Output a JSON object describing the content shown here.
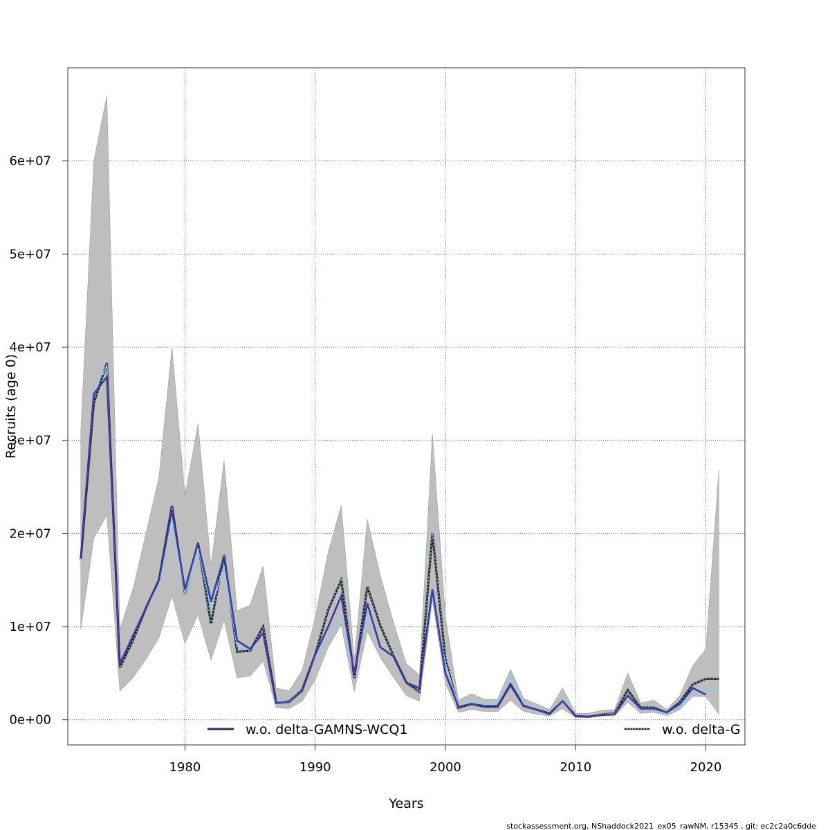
{
  "chart_data": {
    "type": "line",
    "title": "",
    "xlabel": "Years",
    "ylabel": "Recruits (age 0)",
    "xlim": [
      1971,
      2023
    ],
    "ylim": [
      -2700000,
      70000000
    ],
    "x_ticks": [
      1980,
      1990,
      2000,
      2010,
      2020
    ],
    "x_tick_labels": [
      "1980",
      "1990",
      "2000",
      "2010",
      "2020"
    ],
    "y_ticks": [
      0,
      10000000,
      20000000,
      30000000,
      40000000,
      50000000,
      60000000
    ],
    "y_tick_labels": [
      "0e+00",
      "1e+07",
      "2e+07",
      "3e+07",
      "4e+07",
      "5e+07",
      "6e+07"
    ],
    "grid": true,
    "legend_placement": "bottom",
    "colors": {
      "band": "#bebebe",
      "black": "#222222",
      "series1": "#3b1c7a",
      "series2": "#87cefa",
      "blue": "#3a5fd9",
      "grid": "#666666"
    },
    "x": [
      1972,
      1973,
      1974,
      1975,
      1976,
      1977,
      1978,
      1979,
      1980,
      1981,
      1982,
      1983,
      1984,
      1985,
      1986,
      1987,
      1988,
      1989,
      1990,
      1991,
      1992,
      1993,
      1994,
      1995,
      1996,
      1997,
      1998,
      1999,
      2000,
      2001,
      2002,
      2003,
      2004,
      2005,
      2006,
      2007,
      2008,
      2009,
      2010,
      2011,
      2012,
      2013,
      2014,
      2015,
      2016,
      2017,
      2018,
      2019,
      2020,
      2021
    ],
    "band_upper": [
      31000000,
      60000000,
      67000000,
      9700000,
      14000000,
      20000000,
      26000000,
      40000000,
      24000000,
      31800000,
      16500000,
      27800000,
      11700000,
      12300000,
      16500000,
      3400000,
      3100000,
      5300000,
      11000000,
      18000000,
      23000000,
      6500000,
      21500000,
      15500000,
      10500000,
      6000000,
      4800000,
      30700000,
      11000000,
      2100000,
      2800000,
      2200000,
      2200000,
      5400000,
      2300000,
      1700000,
      1100000,
      3400000,
      700000,
      700000,
      1000000,
      1100000,
      5000000,
      1800000,
      2100000,
      1100000,
      2600000,
      5800000,
      7600000,
      26800000
    ],
    "band_lower": [
      9700000,
      19500000,
      22000000,
      3100000,
      4500000,
      6500000,
      8800000,
      13300000,
      8200000,
      11300000,
      6400000,
      10700000,
      4500000,
      4700000,
      6300000,
      1300000,
      1200000,
      2000000,
      4300000,
      7800000,
      10200000,
      3000000,
      9500000,
      6700000,
      4600000,
      2600000,
      2000000,
      12800000,
      3900000,
      800000,
      1100000,
      900000,
      900000,
      2100000,
      900000,
      600000,
      400000,
      1200000,
      250000,
      250000,
      400000,
      400000,
      1900000,
      700000,
      800000,
      450000,
      1100000,
      2500000,
      2500000,
      600000
    ],
    "series": [
      {
        "name": "w.o. delta-GAMNS-WCQ1",
        "style": "solid",
        "values": [
          17500000,
          35000000,
          36800000,
          6000000,
          9000000,
          12000000,
          15000000,
          22500000,
          14000000,
          19000000,
          12700000,
          17500000,
          8500000,
          7600000,
          9300000,
          1800000,
          1900000,
          3100000,
          7000000,
          10000000,
          13300000,
          5000000,
          12500000,
          7800000,
          6800000,
          4000000,
          3400000,
          14000000,
          5000000,
          1400000,
          1700000,
          1500000,
          1500000,
          3700000,
          1500000,
          1100000,
          700000,
          2000000,
          400000,
          350000,
          500000,
          600000,
          2600000,
          1200000,
          1200000,
          800000,
          1700000,
          3400000,
          2700000,
          null
        ]
      },
      {
        "name": "w.o. delta-G",
        "style": "dotted",
        "values": [
          17200000,
          34000000,
          38300000,
          5600000,
          8500000,
          12000000,
          15000000,
          23000000,
          13500000,
          19000000,
          10300000,
          17700000,
          7300000,
          7400000,
          10000000,
          1900000,
          2000000,
          3200000,
          7000000,
          11800000,
          15000000,
          4500000,
          14300000,
          10100000,
          6900000,
          4000000,
          3000000,
          20000000,
          6500000,
          1300000,
          1700000,
          1400000,
          1400000,
          3800000,
          1500000,
          1100000,
          650000,
          2100000,
          400000,
          330000,
          550000,
          700000,
          3200000,
          1300000,
          1300000,
          750000,
          1900000,
          3800000,
          4400000,
          4400000
        ]
      }
    ],
    "extra_lines": [
      {
        "name": "",
        "values": [
          18000000,
          35500000,
          38000000,
          6000000,
          9000000,
          12000000,
          14500000,
          21500000,
          13500000,
          18500000,
          12000000,
          16500000,
          8000000,
          7500000,
          9300000,
          2000000,
          2000000,
          3200000,
          6800000,
          9000000,
          11000000,
          5000000,
          11500000,
          8000000,
          6700000,
          4000000,
          3600000,
          13000000,
          6000000,
          1600000,
          1900000,
          1700000,
          1700000,
          4800000,
          1700000,
          1200000,
          750000,
          2200000,
          450000,
          400000,
          550000,
          700000,
          2500000,
          1100000,
          1100000,
          700000,
          1500000,
          3000000,
          3200000,
          3300000
        ]
      }
    ],
    "footer": "stockassessment.org, NShaddock2021_ex05_rawNM, r15345 , git: ec2c2a0c6dde"
  }
}
